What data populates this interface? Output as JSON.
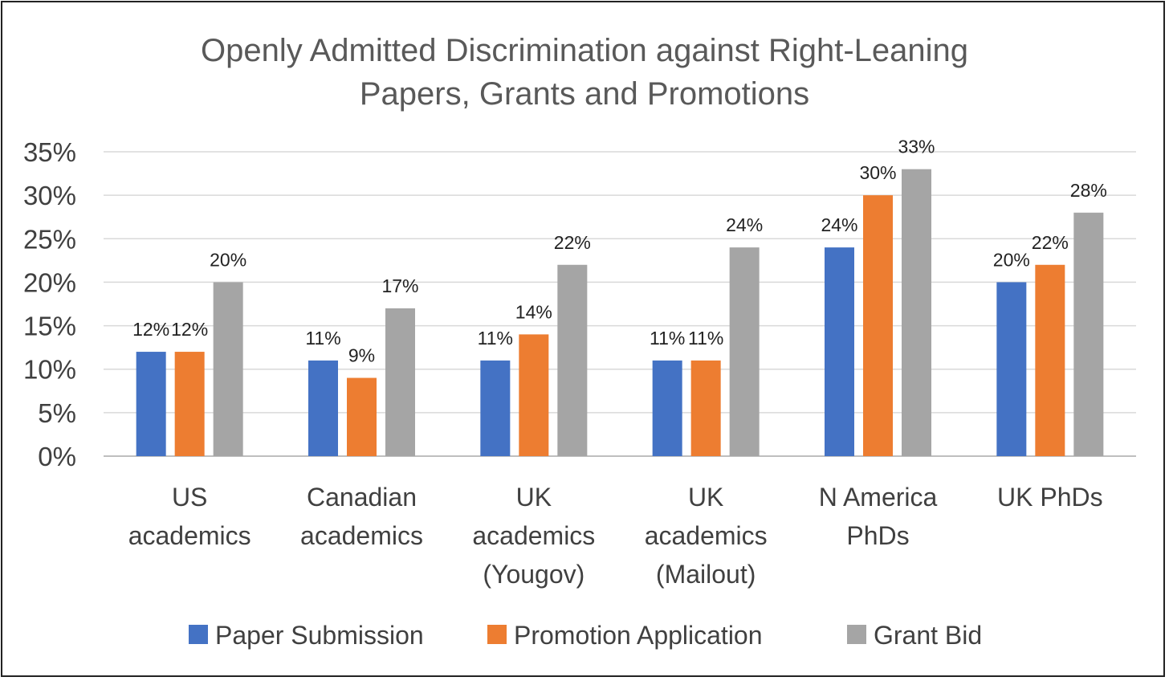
{
  "chart_data": {
    "type": "bar",
    "title": [
      "Openly Admitted Discrimination against Right-Leaning",
      "Papers, Grants and Promotions"
    ],
    "categories": [
      [
        "US",
        "academics"
      ],
      [
        "Canadian",
        "academics"
      ],
      [
        "UK",
        "academics",
        "(Yougov)"
      ],
      [
        "UK",
        "academics",
        "(Mailout)"
      ],
      [
        "N America",
        "PhDs"
      ],
      [
        "UK PhDs"
      ]
    ],
    "series": [
      {
        "name": "Paper Submission",
        "color": "#4472C4",
        "values": [
          12,
          11,
          11,
          11,
          24,
          20
        ]
      },
      {
        "name": "Promotion Application",
        "color": "#ED7D31",
        "values": [
          12,
          9,
          14,
          11,
          30,
          22
        ]
      },
      {
        "name": "Grant Bid",
        "color": "#A5A5A5",
        "values": [
          20,
          17,
          22,
          24,
          33,
          28
        ]
      }
    ],
    "ylim": [
      0,
      35
    ],
    "yticks": [
      "0%",
      "5%",
      "10%",
      "15%",
      "20%",
      "25%",
      "30%",
      "35%"
    ],
    "value_suffix": "%",
    "grid": true,
    "legend": "bottom"
  }
}
